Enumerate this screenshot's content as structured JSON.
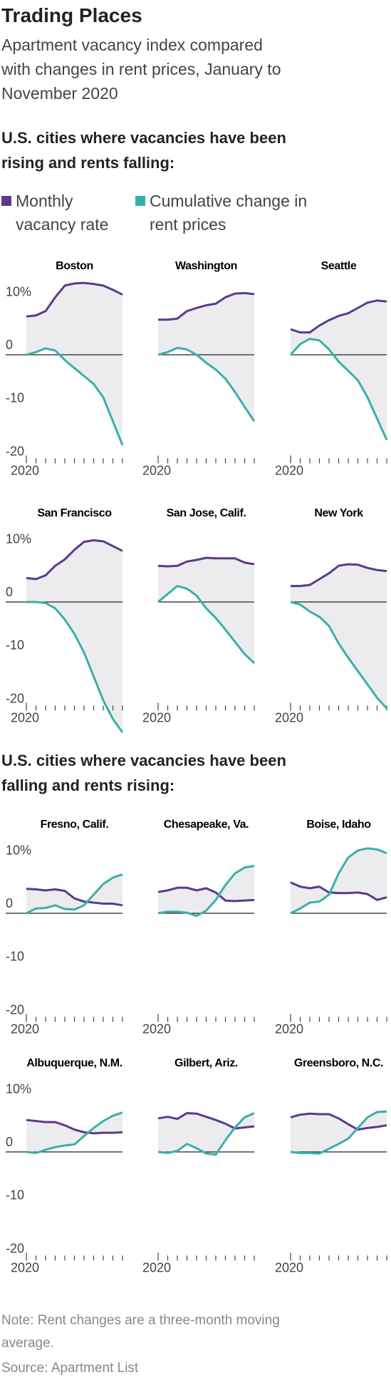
{
  "title": "Trading Places",
  "subtitle": "Apartment vacancy index compared with changes in rent prices, January to November 2020",
  "sections": [
    {
      "heading": "U.S. cities where vacancies have been rising and rents falling:"
    },
    {
      "heading": "U.S. cities where vacancies have been falling and rents rising:"
    }
  ],
  "note": "Note: Rent changes are a three-month moving average.",
  "source": "Source: Apartment List",
  "chart_data": {
    "type": "line",
    "categories": [
      "2020",
      null,
      null,
      null,
      null,
      null,
      null,
      null,
      null,
      null,
      null
    ],
    "ylim": [
      -20,
      14
    ],
    "yticks": [
      {
        "value": 10,
        "label": "10%"
      },
      0,
      -10,
      -20
    ],
    "series": [
      {
        "name": "Monthly vacancy rate",
        "color": "#5b3a8c"
      },
      {
        "name": "Cumulative change in rent prices",
        "color": "#3aafa9"
      }
    ],
    "panels": [
      {
        "title": "Boston",
        "values": [
          [
            7.2,
            7.4,
            8.2,
            10.8,
            13.0,
            13.4,
            13.5,
            13.3,
            13.0,
            12.2,
            11.3
          ],
          [
            0,
            0.5,
            1.2,
            0.8,
            -1,
            -2.5,
            -4,
            -5.5,
            -8,
            -12.5,
            -17
          ]
        ]
      },
      {
        "title": "Washington",
        "values": [
          [
            6.6,
            6.6,
            6.8,
            8.2,
            8.8,
            9.3,
            9.6,
            10.8,
            11.5,
            11.6,
            11.4
          ],
          [
            0,
            0.5,
            1.3,
            1,
            0,
            -1.5,
            -2.8,
            -4.5,
            -7,
            -9.8,
            -12.5
          ]
        ]
      },
      {
        "title": "Seattle",
        "values": [
          [
            4.8,
            4.2,
            4.2,
            5.5,
            6.5,
            7.3,
            7.8,
            8.8,
            9.8,
            10.2,
            10
          ],
          [
            0,
            2,
            3,
            2.7,
            1,
            -1.3,
            -3,
            -4.8,
            -8,
            -12,
            -16
          ]
        ]
      },
      {
        "title": "San Francisco",
        "values": [
          [
            4.5,
            4.3,
            5,
            6.8,
            8,
            9.8,
            11.3,
            11.6,
            11.4,
            10.5,
            9.6
          ],
          [
            0,
            0,
            -0.2,
            -1.2,
            -3.3,
            -6,
            -9.5,
            -14,
            -18.5,
            -22,
            -24.5
          ]
        ]
      },
      {
        "title": "San Jose, Calif.",
        "values": [
          [
            6.8,
            6.7,
            6.8,
            7.6,
            7.9,
            8.3,
            8.2,
            8.2,
            8.2,
            7.4,
            7.1
          ],
          [
            0,
            1.5,
            3,
            2.5,
            1.2,
            -1.2,
            -3,
            -5.2,
            -7.5,
            -9.8,
            -11.5
          ]
        ]
      },
      {
        "title": "New York",
        "values": [
          [
            3,
            3,
            3.2,
            4.3,
            5.4,
            6.8,
            7.1,
            7,
            6.4,
            6,
            5.8
          ],
          [
            0,
            -0.5,
            -1.8,
            -2.8,
            -4.5,
            -7.8,
            -10.5,
            -13,
            -15.5,
            -18,
            -20
          ]
        ]
      },
      {
        "title": "Fresno, Calif.",
        "values": [
          [
            4.6,
            4.5,
            4.3,
            4.5,
            4.2,
            2.8,
            2.2,
            2,
            1.8,
            1.8,
            1.5
          ],
          [
            0,
            0.9,
            1,
            1.5,
            0.8,
            0.7,
            1.5,
            3.5,
            5.5,
            6.7,
            7.3
          ]
        ]
      },
      {
        "title": "Chesapeake, Va.",
        "values": [
          [
            4,
            4.3,
            4.8,
            4.8,
            4.3,
            4.7,
            3.9,
            2.4,
            2.3,
            2.4,
            2.5
          ],
          [
            0,
            0.3,
            0.3,
            0.1,
            -0.5,
            0.5,
            2.5,
            5.3,
            7.5,
            8.6,
            8.9
          ]
        ]
      },
      {
        "title": "Boise, Idaho",
        "values": [
          [
            5.8,
            5,
            4.7,
            5,
            3.9,
            3.8,
            3.8,
            3.9,
            3.6,
            2.5,
            3
          ],
          [
            0,
            0.9,
            2,
            2.2,
            3.5,
            7.5,
            10.5,
            11.8,
            12.2,
            12,
            11.3
          ]
        ]
      },
      {
        "title": "Albuquerque, N.M.",
        "values": [
          [
            6,
            5.8,
            5.6,
            5.6,
            5,
            4.2,
            3.7,
            3.5,
            3.6,
            3.6,
            3.7
          ],
          [
            0,
            -0.2,
            0.4,
            0.9,
            1.2,
            1.4,
            3,
            4.5,
            5.8,
            6.8,
            7.4
          ]
        ]
      },
      {
        "title": "Gilbert, Ariz.",
        "values": [
          [
            6.3,
            6.6,
            6.2,
            7.3,
            7.2,
            6.6,
            6,
            5.3,
            4.4,
            4.6,
            4.8
          ],
          [
            0,
            -0.2,
            0.2,
            1.5,
            0.7,
            -0.3,
            -0.5,
            2.2,
            4.6,
            6.5,
            7.3
          ]
        ]
      },
      {
        "title": "Greensboro, N.C.",
        "values": [
          [
            6.5,
            7,
            7.2,
            7.1,
            7.1,
            6.3,
            5.2,
            4.2,
            4.5,
            4.7,
            5
          ],
          [
            0,
            -0.2,
            -0.2,
            -0.3,
            0.6,
            1.5,
            2.5,
            4.5,
            6.5,
            7.5,
            7.6
          ]
        ]
      }
    ]
  }
}
